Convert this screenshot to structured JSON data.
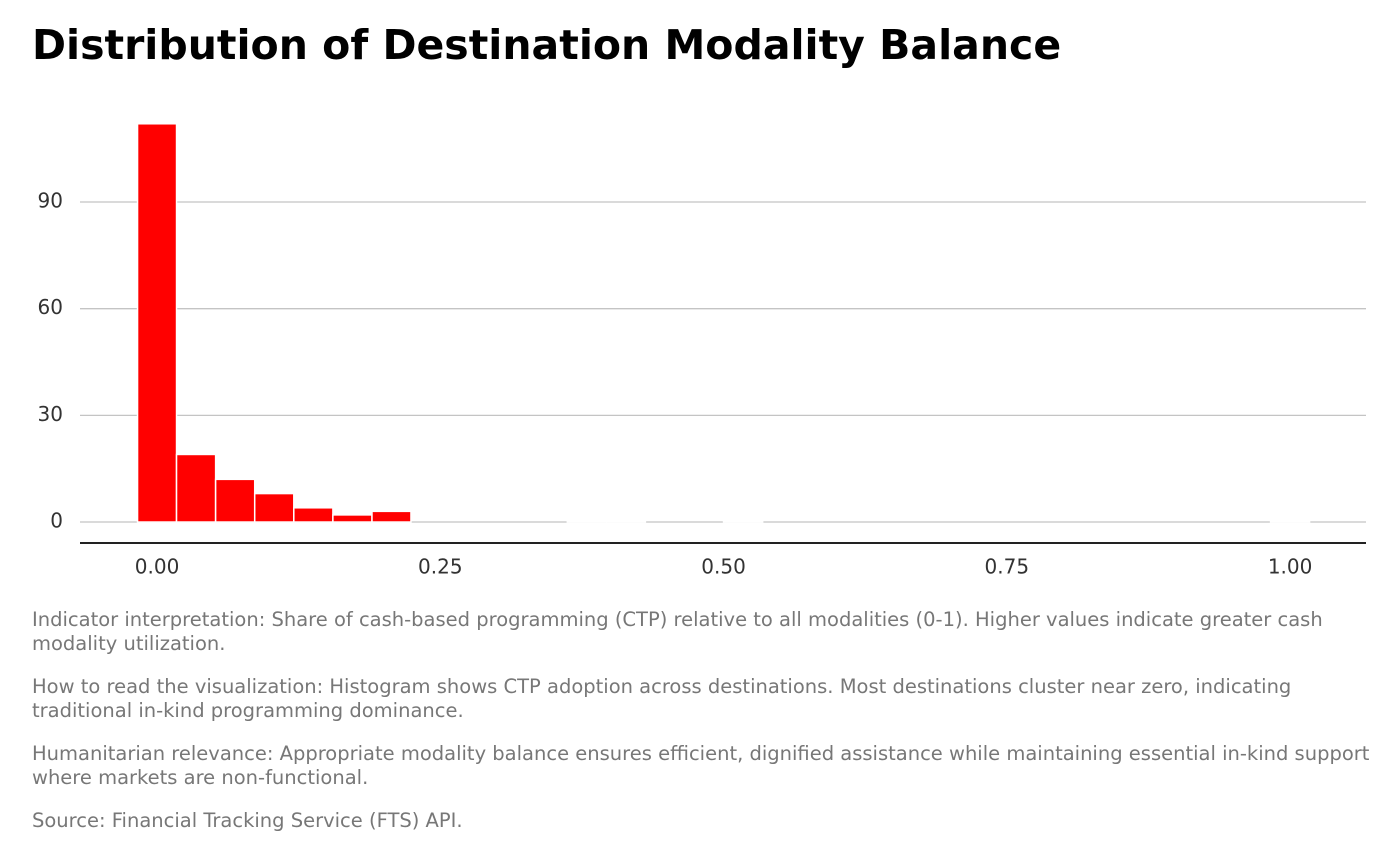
{
  "chart_data": {
    "type": "histogram",
    "title": "Distribution of Destination Modality Balance",
    "bins": [
      -0.0172,
      0.0172,
      0.0517,
      0.0862,
      0.1207,
      0.1552,
      0.1897,
      0.2241,
      0.2586,
      0.2931,
      0.3276,
      0.3621,
      0.3966,
      0.431,
      0.4655,
      0.5,
      0.5345,
      0.569,
      0.6034,
      0.6379,
      0.6724,
      0.7069,
      0.7414,
      0.7759,
      0.8103,
      0.8448,
      0.8793,
      0.9138,
      0.9483,
      0.9828,
      1.0172
    ],
    "values": [
      112,
      19,
      12,
      8,
      4,
      2,
      3,
      0,
      0,
      0,
      0,
      0.3,
      0.3,
      0,
      0,
      0.3,
      0,
      0,
      0,
      0,
      0,
      0,
      0,
      0,
      0,
      0,
      0,
      0,
      0,
      0.3
    ],
    "color": "#ff0000",
    "xlim": [
      -0.068,
      1.067
    ],
    "ylim": [
      -5.9,
      117
    ],
    "xticks": [
      {
        "value": 0,
        "label": "0.00"
      },
      {
        "value": 0.25,
        "label": "0.25"
      },
      {
        "value": 0.5,
        "label": "0.50"
      },
      {
        "value": 0.75,
        "label": "0.75"
      },
      {
        "value": 1,
        "label": "1.00"
      }
    ],
    "yticks": [
      0,
      30,
      60,
      90
    ],
    "grid": true,
    "notes": [
      "Indicator interpretation: Share of cash-based programming (CTP) relative to all modalities (0-1). Higher values indicate greater cash modality utilization.",
      "How to read the visualization: Histogram shows CTP adoption across destinations. Most destinations cluster near zero, indicating traditional in-kind programming dominance.",
      "Humanitarian relevance: Appropriate modality balance ensures efficient, dignified assistance while maintaining essential in-kind support where markets are non-functional.",
      "Source: Financial Tracking Service (FTS) API."
    ]
  }
}
